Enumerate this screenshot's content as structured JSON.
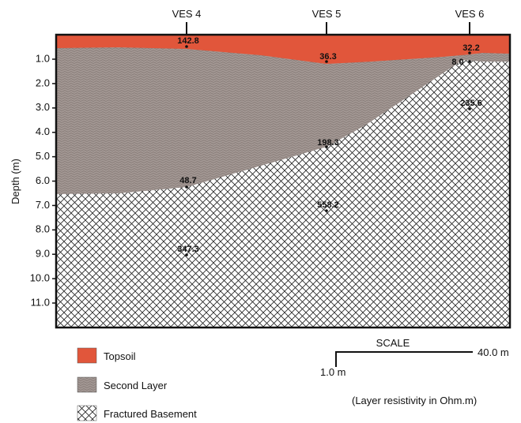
{
  "header": {
    "y_axis_label": "Depth (m)",
    "stations": [
      "VES 4",
      "VES 5",
      "VES 6"
    ]
  },
  "depth_ticks": [
    "1.0",
    "2.0",
    "3.0",
    "4.0",
    "5.0",
    "6.0",
    "7.0",
    "8.0",
    "9.0",
    "10.0",
    "11.0"
  ],
  "resistivity_labels": [
    "142.8",
    "36.3",
    "32.2",
    "8.0",
    "235.6",
    "198.3",
    "48.7",
    "558.2",
    "347.3"
  ],
  "legend": [
    "Topsoil",
    "Second Layer",
    "Fractured Basement"
  ],
  "scale": {
    "title": "SCALE",
    "horizontal": "40.0 m",
    "vertical": "1.0 m"
  },
  "note": "(Layer resistivity in Ohm.m)"
}
